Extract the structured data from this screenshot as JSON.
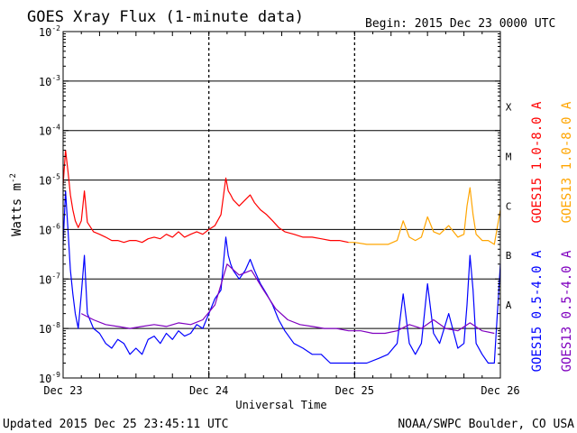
{
  "chart_data": {
    "type": "line",
    "title": "GOES Xray Flux (1-minute data)",
    "begin_label": "Begin:  2015 Dec 23 0000 UTC",
    "xlabel": "Universal Time",
    "ylabel": "Watts m",
    "ylabel_exponent": "-2",
    "x_unit": "hours since 2015 Dec 23 0000 UTC",
    "xlim": [
      0,
      72
    ],
    "ylim": [
      1e-09,
      0.01
    ],
    "yscale": "log",
    "x_ticks": [
      {
        "x": 0,
        "label": "Dec 23"
      },
      {
        "x": 24,
        "label": "Dec 24"
      },
      {
        "x": 48,
        "label": "Dec 25"
      },
      {
        "x": 72,
        "label": "Dec 26"
      }
    ],
    "y_ticks": [
      {
        "base": "10",
        "exp": "-2",
        "value": 0.01
      },
      {
        "base": "10",
        "exp": "-3",
        "value": 0.001
      },
      {
        "base": "10",
        "exp": "-4",
        "value": 0.0001
      },
      {
        "base": "10",
        "exp": "-5",
        "value": 1e-05
      },
      {
        "base": "10",
        "exp": "-6",
        "value": 1e-06
      },
      {
        "base": "10",
        "exp": "-7",
        "value": 1e-07
      },
      {
        "base": "10",
        "exp": "-8",
        "value": 1e-08
      },
      {
        "base": "10",
        "exp": "-9",
        "value": 1e-09
      }
    ],
    "flare_classes": [
      {
        "label": "X",
        "value": 0.0003
      },
      {
        "label": "M",
        "value": 3e-05
      },
      {
        "label": "C",
        "value": 3e-06
      },
      {
        "label": "B",
        "value": 3e-07
      },
      {
        "label": "A",
        "value": 3e-08
      }
    ],
    "series": [
      {
        "name": "GOES15 1.0-8.0 A",
        "color": "#ff0000",
        "x": [
          0,
          0.4,
          0.8,
          1.2,
          1.6,
          2.0,
          2.5,
          3.0,
          3.5,
          4.0,
          5.0,
          6.0,
          7.0,
          8.0,
          9.0,
          10.0,
          11.0,
          12.0,
          13.0,
          14.0,
          15.0,
          16.0,
          17.0,
          18.0,
          19.0,
          20.0,
          21.0,
          22.0,
          23.0,
          24.0,
          25.0,
          26.0,
          26.8,
          27.2,
          27.6,
          28.0,
          29.0,
          30.0,
          30.8,
          31.5,
          32.5,
          33.5,
          34.5,
          35.5,
          36.5,
          38.0,
          39.5,
          41.0,
          42.5,
          44.0,
          45.5,
          47.0
        ],
        "values": [
          8e-06,
          4e-05,
          1.5e-05,
          5e-06,
          2.5e-06,
          1.5e-06,
          1.1e-06,
          1.5e-06,
          6e-06,
          1.4e-06,
          9e-07,
          8e-07,
          7e-07,
          6e-07,
          6e-07,
          5.5e-07,
          6e-07,
          6e-07,
          5.5e-07,
          6.5e-07,
          7e-07,
          6.5e-07,
          8e-07,
          7e-07,
          9e-07,
          7e-07,
          8e-07,
          9e-07,
          8e-07,
          1e-06,
          1.2e-06,
          2e-06,
          1.1e-05,
          6e-06,
          5e-06,
          4e-06,
          3e-06,
          4e-06,
          5e-06,
          3.5e-06,
          2.5e-06,
          2e-06,
          1.5e-06,
          1.1e-06,
          9e-07,
          8e-07,
          7e-07,
          7e-07,
          6.5e-07,
          6e-07,
          6e-07,
          5.5e-07
        ]
      },
      {
        "name": "GOES13 1.0-8.0 A",
        "color": "#ffa500",
        "x": [
          47.0,
          48.0,
          50.0,
          52.0,
          53.5,
          55.0,
          56.0,
          57.0,
          58.0,
          59.0,
          60.0,
          61.0,
          62.0,
          63.5,
          65.0,
          66.0,
          66.5,
          67.0,
          67.5,
          68.0,
          69.0,
          70.0,
          71.0,
          72.0
        ],
        "values": [
          5.5e-07,
          5.5e-07,
          5e-07,
          5e-07,
          5e-07,
          6e-07,
          1.5e-06,
          7e-07,
          6e-07,
          7e-07,
          1.8e-06,
          9e-07,
          8e-07,
          1.2e-06,
          7e-07,
          8e-07,
          3e-06,
          7e-06,
          2e-06,
          8e-07,
          6e-07,
          6e-07,
          5e-07,
          2.5e-06
        ]
      },
      {
        "name": "GOES15 0.5-4.0 A",
        "color": "#0000ff",
        "x": [
          0,
          0.4,
          0.8,
          1.2,
          1.6,
          2.0,
          2.5,
          3.0,
          3.5,
          4.0,
          5.0,
          6.0,
          7.0,
          8.0,
          9.0,
          10.0,
          11.0,
          12.0,
          13.0,
          14.0,
          15.0,
          16.0,
          17.0,
          18.0,
          19.0,
          20.0,
          21.0,
          22.0,
          23.0,
          24.0,
          25.0,
          26.0,
          26.8,
          27.2,
          27.6,
          28.0,
          29.0,
          30.0,
          30.8,
          31.5,
          32.5,
          33.5,
          34.5,
          35.5,
          36.5,
          38.0,
          39.5,
          41.0,
          42.5,
          44.0,
          45.5,
          47.0,
          48.0,
          50.0,
          52.0,
          53.5,
          55.0,
          56.0,
          57.0,
          58.0,
          59.0,
          60.0,
          61.0,
          62.0,
          63.5,
          65.0,
          66.0,
          66.5,
          67.0,
          67.5,
          68.0,
          69.0,
          70.0,
          71.0,
          72.0
        ],
        "values": [
          5e-07,
          6e-06,
          1e-06,
          1.5e-07,
          5e-08,
          2e-08,
          1e-08,
          5e-08,
          3e-07,
          2e-08,
          1e-08,
          8e-09,
          5e-09,
          4e-09,
          6e-09,
          5e-09,
          3e-09,
          4e-09,
          3e-09,
          6e-09,
          7e-09,
          5e-09,
          8e-09,
          6e-09,
          9e-09,
          7e-09,
          8e-09,
          1.2e-08,
          1e-08,
          2e-08,
          4e-08,
          6e-08,
          7e-07,
          3e-07,
          2e-07,
          1.5e-07,
          1e-07,
          1.5e-07,
          2.5e-07,
          1.5e-07,
          8e-08,
          5e-08,
          3e-08,
          1.5e-08,
          9e-09,
          5e-09,
          4e-09,
          3e-09,
          3e-09,
          2e-09,
          2e-09,
          2e-09,
          2e-09,
          2e-09,
          2.5e-09,
          3e-09,
          5e-09,
          5e-08,
          5e-09,
          3e-09,
          5e-09,
          8e-08,
          8e-09,
          5e-09,
          2e-08,
          4e-09,
          5e-09,
          3e-08,
          3e-07,
          6e-08,
          5e-09,
          3e-09,
          2e-09,
          2e-09,
          2e-07
        ]
      },
      {
        "name": "GOES13 0.5-4.0 A",
        "color": "#7f00bf",
        "x": [
          3.0,
          5.0,
          7.0,
          9.0,
          11.0,
          13.0,
          15.0,
          17.0,
          19.0,
          21.0,
          23.0,
          25.0,
          27.0,
          29.0,
          31.0,
          33.0,
          35.0,
          37.0,
          39.0,
          41.0,
          43.0,
          45.0,
          47.0,
          49.0,
          51.0,
          53.0,
          55.0,
          57.0,
          59.0,
          61.0,
          63.0,
          65.0,
          67.0,
          69.0,
          71.0
        ],
        "values": [
          2e-08,
          1.5e-08,
          1.2e-08,
          1.1e-08,
          1e-08,
          1.1e-08,
          1.2e-08,
          1.1e-08,
          1.3e-08,
          1.2e-08,
          1.5e-08,
          3e-08,
          2e-07,
          1.2e-07,
          1.5e-07,
          6e-08,
          2.5e-08,
          1.5e-08,
          1.2e-08,
          1.1e-08,
          1e-08,
          1e-08,
          9e-09,
          9e-09,
          8e-09,
          8e-09,
          9e-09,
          1.2e-08,
          1e-08,
          1.5e-08,
          1e-08,
          9e-09,
          1.3e-08,
          9e-09,
          8e-09
        ]
      }
    ],
    "legend": [
      {
        "label": "GOES15 1.0-8.0 A",
        "color": "#ff0000"
      },
      {
        "label": "GOES13 1.0-8.0 A",
        "color": "#ffa500"
      },
      {
        "label": "GOES15 0.5-4.0 A",
        "color": "#0000ff"
      },
      {
        "label": "GOES13 0.5-4.0 A",
        "color": "#7f00bf"
      }
    ]
  },
  "footer": {
    "updated": "Updated 2015 Dec 25 23:45:11 UTC",
    "credit": "NOAA/SWPC Boulder, CO USA"
  }
}
